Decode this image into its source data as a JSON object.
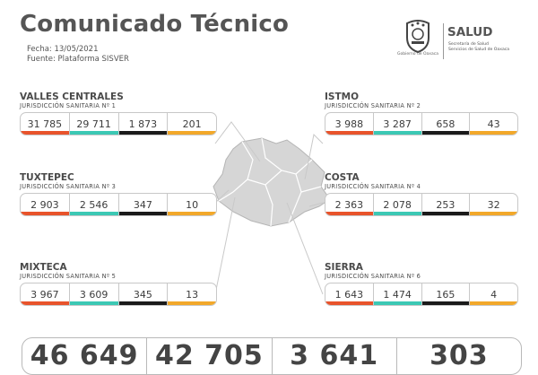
{
  "header": {
    "title": "Comunicado Técnico",
    "date": "Fecha: 13/05/2021",
    "source": "Fuente: Plataforma SISVER",
    "logo_caption": "Gobierno de Oaxaca",
    "brand": "SALUD",
    "brand_sub_1": "Secretaría de Salud",
    "brand_sub_2": "Servicios de Salud de Oaxaca"
  },
  "colors": {
    "confirmed": "#e8532b",
    "recovered": "#3cc8b4",
    "deaths": "#1a1a1a",
    "active": "#f2a82a"
  },
  "regions": [
    {
      "name": "VALLES CENTRALES",
      "jurisdiction": "JURISDICCIÓN SANITARIA Nº 1",
      "values": [
        "31 785",
        "29 711",
        "1 873",
        "201"
      ]
    },
    {
      "name": "ISTMO",
      "jurisdiction": "JURISDICCIÓN SANITARIA Nº 2",
      "values": [
        "3 988",
        "3 287",
        "658",
        "43"
      ]
    },
    {
      "name": "TUXTEPEC",
      "jurisdiction": "JURISDICCIÓN SANITARIA Nº 3",
      "values": [
        "2 903",
        "2 546",
        "347",
        "10"
      ]
    },
    {
      "name": "COSTA",
      "jurisdiction": "JURISDICCIÓN SANITARIA Nº 4",
      "values": [
        "2 363",
        "2 078",
        "253",
        "32"
      ]
    },
    {
      "name": "MIXTECA",
      "jurisdiction": "JURISDICCIÓN SANITARIA Nº 5",
      "values": [
        "3 967",
        "3 609",
        "345",
        "13"
      ]
    },
    {
      "name": "SIERRA",
      "jurisdiction": "JURISDICCIÓN SANITARIA Nº 6",
      "values": [
        "1 643",
        "1 474",
        "165",
        "4"
      ]
    }
  ],
  "totals": [
    "46 649",
    "42 705",
    "3 641",
    "303"
  ]
}
